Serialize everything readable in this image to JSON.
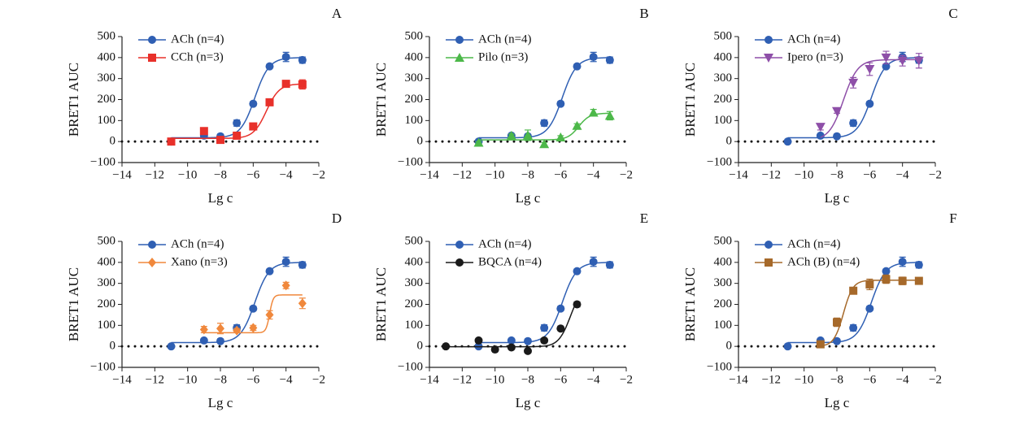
{
  "chart_data": [
    {
      "type": "scatter",
      "panel_label": "A",
      "y_label": "BRET1 AUC",
      "x_label": "Lg c",
      "xlim": [
        -14,
        -2
      ],
      "ylim": [
        -100,
        500
      ],
      "xticks": [
        {
          "value": -14,
          "label": "−14"
        },
        {
          "value": -12,
          "label": "−12"
        },
        {
          "value": -10,
          "label": "−10"
        },
        {
          "value": -8,
          "label": "−8"
        },
        {
          "value": -6,
          "label": "−6"
        },
        {
          "value": -4,
          "label": "−4"
        },
        {
          "value": -2,
          "label": "−2"
        }
      ],
      "yticks": [
        {
          "value": -100,
          "label": "−100"
        },
        0,
        100,
        200,
        300,
        400,
        500
      ],
      "zero_line": true,
      "series": [
        {
          "name": "ACh (n=4)",
          "color": "#2f5fb3",
          "marker": "circle",
          "x": [
            -11,
            -9,
            -8,
            -7,
            -6,
            -5,
            -4,
            -3
          ],
          "values": [
            0,
            28,
            25,
            88,
            180,
            358,
            403,
            388
          ],
          "errors": [
            5,
            5,
            5,
            15,
            10,
            10,
            22,
            15
          ],
          "fit": {
            "bottom": 18,
            "top": 400,
            "log_ec50": -5.9,
            "hill": 1
          }
        },
        {
          "name": "CCh (n=3)",
          "color": "#e8302a",
          "marker": "square",
          "x": [
            -11,
            -9,
            -8,
            -7,
            -6,
            -5,
            -4,
            -3
          ],
          "values": [
            0,
            50,
            8,
            28,
            72,
            187,
            275,
            272
          ],
          "errors": [
            5,
            5,
            5,
            5,
            8,
            10,
            15,
            22
          ],
          "fit": {
            "bottom": 15,
            "top": 275,
            "log_ec50": -5.2,
            "hill": 1.1
          }
        }
      ]
    },
    {
      "type": "scatter",
      "panel_label": "B",
      "y_label": "BRET1 AUC",
      "x_label": "Lg c",
      "xlim": [
        -14,
        -2
      ],
      "ylim": [
        -100,
        500
      ],
      "xticks": [
        {
          "value": -14,
          "label": "−14"
        },
        {
          "value": -12,
          "label": "−12"
        },
        {
          "value": -10,
          "label": "−10"
        },
        {
          "value": -8,
          "label": "−8"
        },
        {
          "value": -6,
          "label": "−6"
        },
        {
          "value": -4,
          "label": "−4"
        },
        {
          "value": -2,
          "label": "−2"
        }
      ],
      "yticks": [
        {
          "value": -100,
          "label": "−100"
        },
        0,
        100,
        200,
        300,
        400,
        500
      ],
      "zero_line": true,
      "series": [
        {
          "name": "ACh (n=4)",
          "color": "#2f5fb3",
          "marker": "circle",
          "x": [
            -11,
            -9,
            -8,
            -7,
            -6,
            -5,
            -4,
            -3
          ],
          "values": [
            0,
            28,
            25,
            88,
            180,
            358,
            403,
            388
          ],
          "errors": [
            5,
            5,
            5,
            15,
            10,
            10,
            22,
            15
          ],
          "fit": {
            "bottom": 18,
            "top": 400,
            "log_ec50": -5.9,
            "hill": 1
          }
        },
        {
          "name": "Pilo (n=3)",
          "color": "#4cb849",
          "marker": "triangle",
          "x": [
            -11,
            -9,
            -8,
            -7,
            -6,
            -5,
            -4,
            -3
          ],
          "values": [
            -5,
            28,
            30,
            -12,
            20,
            75,
            138,
            123
          ],
          "errors": [
            5,
            8,
            25,
            8,
            8,
            10,
            15,
            20
          ],
          "fit": {
            "bottom": 8,
            "top": 135,
            "log_ec50": -4.9,
            "hill": 1.3
          }
        }
      ]
    },
    {
      "type": "scatter",
      "panel_label": "C",
      "y_label": "BRET1 AUC",
      "x_label": "Lg c",
      "xlim": [
        -14,
        -2
      ],
      "ylim": [
        -100,
        500
      ],
      "xticks": [
        {
          "value": -14,
          "label": "−14"
        },
        {
          "value": -12,
          "label": "−12"
        },
        {
          "value": -10,
          "label": "−10"
        },
        {
          "value": -8,
          "label": "−8"
        },
        {
          "value": -6,
          "label": "−6"
        },
        {
          "value": -4,
          "label": "−4"
        },
        {
          "value": -2,
          "label": "−2"
        }
      ],
      "yticks": [
        {
          "value": -100,
          "label": "−100"
        },
        0,
        100,
        200,
        300,
        400,
        500
      ],
      "zero_line": true,
      "series": [
        {
          "name": "ACh (n=4)",
          "color": "#2f5fb3",
          "marker": "circle",
          "x": [
            -11,
            -9,
            -8,
            -7,
            -6,
            -5,
            -4,
            -3
          ],
          "values": [
            0,
            28,
            25,
            88,
            180,
            358,
            403,
            388
          ],
          "errors": [
            5,
            5,
            5,
            15,
            10,
            10,
            22,
            15
          ],
          "fit": {
            "bottom": 18,
            "top": 400,
            "log_ec50": -5.9,
            "hill": 1
          }
        },
        {
          "name": "Ipero (n=3)",
          "color": "#8e4fa8",
          "marker": "triangle-down",
          "x": [
            -9,
            -8,
            -7,
            -6,
            -5,
            -4,
            -3
          ],
          "values": [
            70,
            145,
            280,
            345,
            400,
            385,
            385
          ],
          "errors": [
            15,
            10,
            25,
            30,
            30,
            25,
            35
          ],
          "fit": {
            "bottom": 5,
            "top": 390,
            "log_ec50": -7.6,
            "hill": 1
          }
        }
      ]
    },
    {
      "type": "scatter",
      "panel_label": "D",
      "y_label": "BRET1 AUC",
      "x_label": "Lg c",
      "xlim": [
        -14,
        -2
      ],
      "ylim": [
        -100,
        500
      ],
      "xticks": [
        {
          "value": -14,
          "label": "−14"
        },
        {
          "value": -12,
          "label": "−12"
        },
        {
          "value": -10,
          "label": "−10"
        },
        {
          "value": -8,
          "label": "−8"
        },
        {
          "value": -6,
          "label": "−6"
        },
        {
          "value": -4,
          "label": "−4"
        },
        {
          "value": -2,
          "label": "−2"
        }
      ],
      "yticks": [
        {
          "value": -100,
          "label": "−100"
        },
        0,
        100,
        200,
        300,
        400,
        500
      ],
      "zero_line": true,
      "series": [
        {
          "name": "ACh (n=4)",
          "color": "#2f5fb3",
          "marker": "circle",
          "x": [
            -11,
            -9,
            -8,
            -7,
            -6,
            -5,
            -4,
            -3
          ],
          "values": [
            0,
            28,
            25,
            88,
            180,
            358,
            403,
            388
          ],
          "errors": [
            5,
            5,
            5,
            15,
            10,
            10,
            22,
            15
          ],
          "fit": {
            "bottom": 18,
            "top": 400,
            "log_ec50": -5.9,
            "hill": 1
          }
        },
        {
          "name": "Xano (n=3)",
          "color": "#f0883c",
          "marker": "diamond",
          "x": [
            -9,
            -8,
            -7,
            -6,
            -5,
            -4,
            -3
          ],
          "values": [
            80,
            85,
            75,
            88,
            150,
            290,
            205
          ],
          "errors": [
            15,
            25,
            10,
            12,
            20,
            15,
            25
          ],
          "fit": {
            "bottom": 65,
            "top": 245,
            "log_ec50": -5,
            "hill": 4
          }
        }
      ]
    },
    {
      "type": "scatter",
      "panel_label": "E",
      "y_label": "BRET1 AUC",
      "x_label": "Lg c",
      "xlim": [
        -14,
        -2
      ],
      "ylim": [
        -100,
        500
      ],
      "xticks": [
        {
          "value": -14,
          "label": "−14"
        },
        {
          "value": -12,
          "label": "−12"
        },
        {
          "value": -10,
          "label": "−10"
        },
        {
          "value": -8,
          "label": "−8"
        },
        {
          "value": -6,
          "label": "−6"
        },
        {
          "value": -4,
          "label": "−4"
        },
        {
          "value": -2,
          "label": "−2"
        }
      ],
      "yticks": [
        {
          "value": -100,
          "label": "−100"
        },
        0,
        100,
        200,
        300,
        400,
        500
      ],
      "zero_line": true,
      "series": [
        {
          "name": "ACh (n=4)",
          "color": "#2f5fb3",
          "marker": "circle",
          "x": [
            -11,
            -9,
            -8,
            -7,
            -6,
            -5,
            -4,
            -3
          ],
          "values": [
            0,
            28,
            25,
            88,
            180,
            358,
            403,
            388
          ],
          "errors": [
            5,
            5,
            5,
            15,
            10,
            10,
            22,
            15
          ],
          "fit": {
            "bottom": 18,
            "top": 400,
            "log_ec50": -5.9,
            "hill": 1
          }
        },
        {
          "name": "BQCA (n=4)",
          "color": "#1a1a1a",
          "marker": "circle",
          "x": [
            -13,
            -11,
            -10,
            -9,
            -8,
            -7,
            -6,
            -5
          ],
          "values": [
            0,
            28,
            -15,
            -5,
            -22,
            28,
            85,
            200
          ],
          "errors": [
            3,
            5,
            8,
            5,
            8,
            10,
            8,
            12
          ],
          "fit": {
            "bottom": -2,
            "top": 290,
            "log_ec50": -5.4,
            "hill": 1.2
          }
        }
      ]
    },
    {
      "type": "scatter",
      "panel_label": "F",
      "y_label": "BRET1 AUC",
      "x_label": "Lg c",
      "xlim": [
        -14,
        -2
      ],
      "ylim": [
        -100,
        500
      ],
      "xticks": [
        {
          "value": -14,
          "label": "−14"
        },
        {
          "value": -12,
          "label": "−12"
        },
        {
          "value": -10,
          "label": "−10"
        },
        {
          "value": -8,
          "label": "−8"
        },
        {
          "value": -6,
          "label": "−6"
        },
        {
          "value": -4,
          "label": "−4"
        },
        {
          "value": -2,
          "label": "−2"
        }
      ],
      "yticks": [
        {
          "value": -100,
          "label": "−100"
        },
        0,
        100,
        200,
        300,
        400,
        500
      ],
      "zero_line": true,
      "series": [
        {
          "name": "ACh (n=4)",
          "color": "#2f5fb3",
          "marker": "circle",
          "x": [
            -11,
            -9,
            -8,
            -7,
            -6,
            -5,
            -4,
            -3
          ],
          "values": [
            0,
            28,
            25,
            88,
            180,
            358,
            403,
            388
          ],
          "errors": [
            5,
            5,
            5,
            15,
            10,
            10,
            22,
            15
          ],
          "fit": {
            "bottom": 18,
            "top": 400,
            "log_ec50": -5.9,
            "hill": 1
          }
        },
        {
          "name": "ACh (B) (n=4)",
          "color": "#a6692a",
          "marker": "square",
          "x": [
            -9,
            -8,
            -7,
            -6,
            -5,
            -4,
            -3
          ],
          "values": [
            10,
            115,
            265,
            295,
            320,
            312,
            312
          ],
          "errors": [
            15,
            20,
            15,
            25,
            20,
            18,
            10
          ],
          "fit": {
            "bottom": 0,
            "top": 315,
            "log_ec50": -7.6,
            "hill": 1.5
          }
        }
      ]
    }
  ]
}
